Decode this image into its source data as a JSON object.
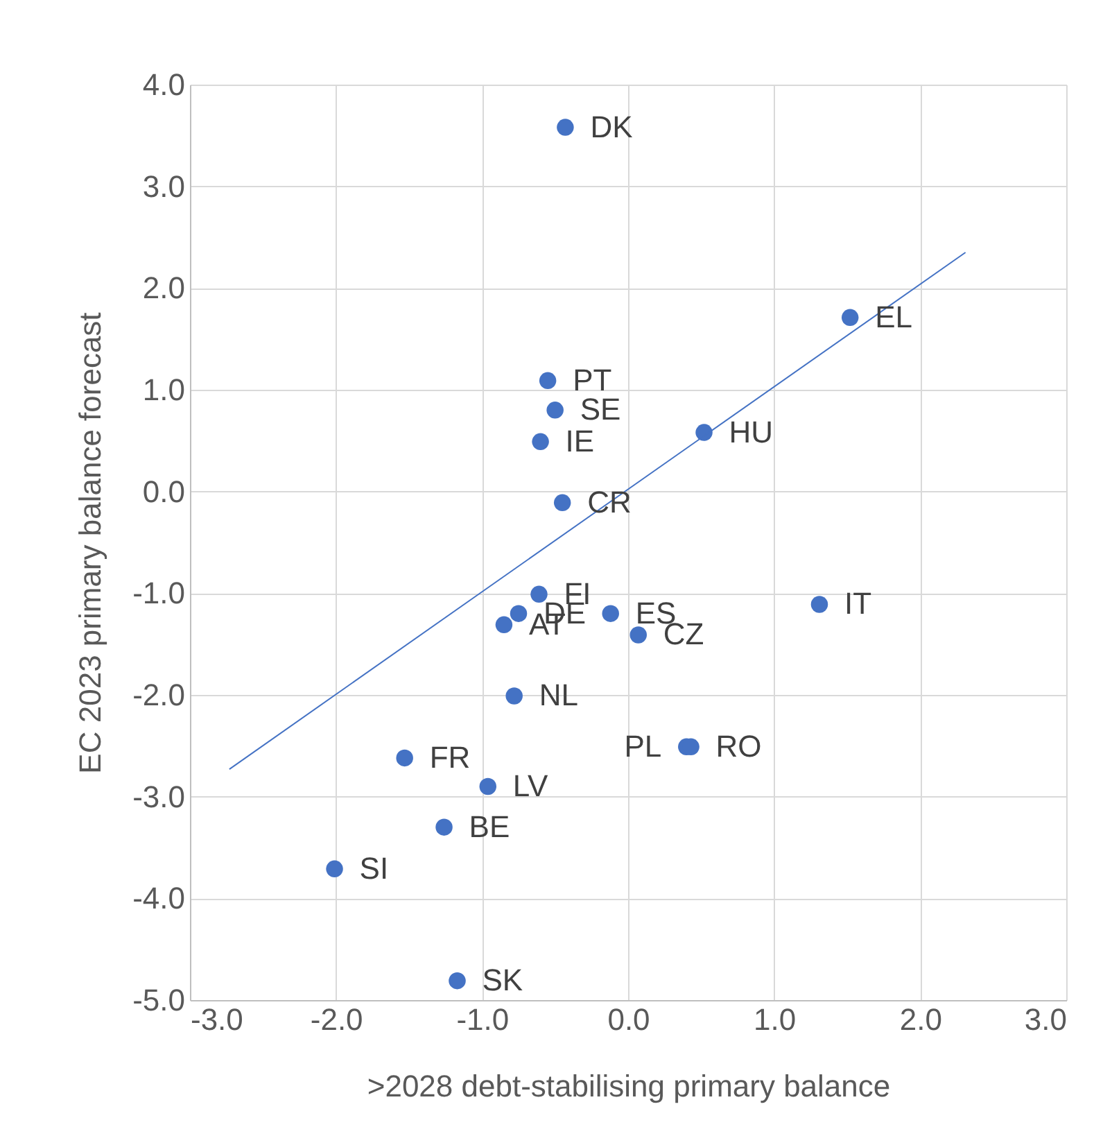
{
  "chart_data": {
    "type": "scatter",
    "xlabel": ">2028 debt-stabilising primary balance",
    "ylabel": "EC 2023 primary balance forecast",
    "xlim": [
      -3,
      3
    ],
    "ylim": [
      -5,
      4
    ],
    "xticks": [
      {
        "value": -3,
        "label": "-3.0"
      },
      {
        "value": -2,
        "label": "-2.0"
      },
      {
        "value": -1,
        "label": "-1.0"
      },
      {
        "value": 0,
        "label": "0.0"
      },
      {
        "value": 1,
        "label": "1.0"
      },
      {
        "value": 2,
        "label": "2.0"
      },
      {
        "value": 3,
        "label": "3.0"
      }
    ],
    "yticks": [
      {
        "value": -5,
        "label": "-5.0"
      },
      {
        "value": -4,
        "label": "-4.0"
      },
      {
        "value": -3,
        "label": "-3.0"
      },
      {
        "value": -2,
        "label": "-2.0"
      },
      {
        "value": -1,
        "label": "-1.0"
      },
      {
        "value": 0,
        "label": "0.0"
      },
      {
        "value": 1,
        "label": "1.0"
      },
      {
        "value": 2,
        "label": "2.0"
      },
      {
        "value": 3,
        "label": "3.0"
      },
      {
        "value": 4,
        "label": "4.0"
      }
    ],
    "grid": true,
    "series": [
      {
        "type": "scatter",
        "marker": "circle",
        "color": "#4472c4",
        "x": [
          -0.43,
          1.52,
          -0.55,
          -0.5,
          -0.6,
          0.52,
          -0.45,
          -0.61,
          -0.75,
          -0.85,
          -0.12,
          0.07,
          1.31,
          -0.78,
          0.4,
          0.43,
          -1.53,
          -0.96,
          -1.26,
          -2.01,
          -1.17
        ],
        "values": [
          3.58,
          1.71,
          1.09,
          0.8,
          0.49,
          0.58,
          -0.11,
          -1.01,
          -1.2,
          -1.31,
          -1.2,
          -1.41,
          -1.11,
          -2.01,
          -2.51,
          -2.51,
          -2.62,
          -2.9,
          -3.3,
          -3.71,
          -4.81
        ]
      },
      {
        "type": "line",
        "marker": "none",
        "color": "#4472c4",
        "x": [
          -2.73,
          2.31
        ],
        "values": [
          -2.73,
          2.35
        ]
      }
    ],
    "annotations": [
      {
        "text": "DK",
        "x": -0.43,
        "y": 3.58
      },
      {
        "text": "EL",
        "x": 1.52,
        "y": 1.71
      },
      {
        "text": "PT",
        "x": -0.55,
        "y": 1.09
      },
      {
        "text": "SE",
        "x": -0.5,
        "y": 0.8
      },
      {
        "text": "IE",
        "x": -0.6,
        "y": 0.49
      },
      {
        "text": "HU",
        "x": 0.52,
        "y": 0.58
      },
      {
        "text": "CR",
        "x": -0.45,
        "y": -0.11
      },
      {
        "text": "FI",
        "x": -0.61,
        "y": -1.01
      },
      {
        "text": "DE",
        "x": -0.75,
        "y": -1.2
      },
      {
        "text": "AT",
        "x": -0.85,
        "y": -1.31
      },
      {
        "text": "ES",
        "x": -0.12,
        "y": -1.2
      },
      {
        "text": "CZ",
        "x": 0.07,
        "y": -1.41
      },
      {
        "text": "IT",
        "x": 1.31,
        "y": -1.11
      },
      {
        "text": "NL",
        "x": -0.78,
        "y": -2.01
      },
      {
        "text": "PL",
        "x": 0.4,
        "y": -2.51
      },
      {
        "text": "RO",
        "x": 0.43,
        "y": -2.51
      },
      {
        "text": "FR",
        "x": -1.53,
        "y": -2.62
      },
      {
        "text": "LV",
        "x": -0.96,
        "y": -2.9
      },
      {
        "text": "BE",
        "x": -1.26,
        "y": -3.3
      },
      {
        "text": "SI",
        "x": -2.01,
        "y": -3.71
      },
      {
        "text": "SK",
        "x": -1.17,
        "y": -4.81
      }
    ]
  }
}
